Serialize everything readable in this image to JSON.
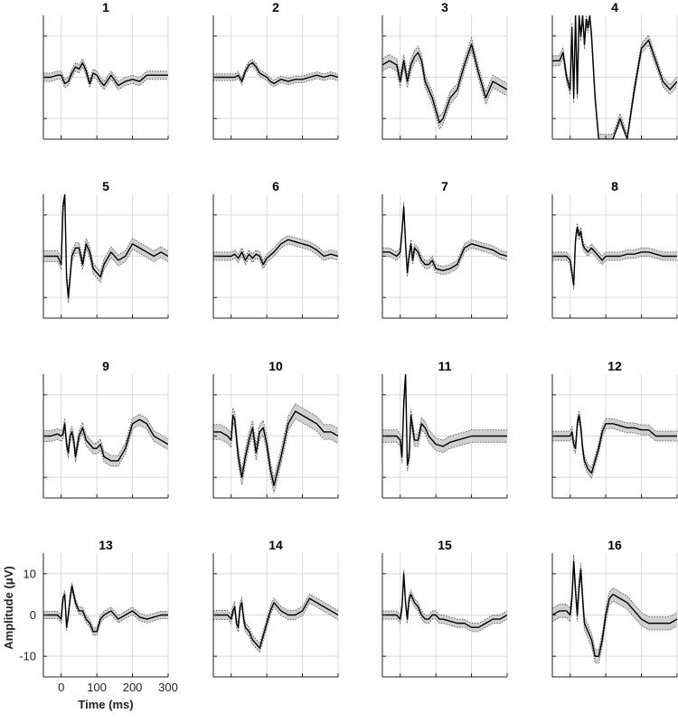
{
  "chart_data": {
    "type": "line",
    "layout_grid": "4x4",
    "x_unit": "ms",
    "xlabel": "Time (ms)",
    "ylabel": "Amplitude (μV)",
    "xlim": [
      -50,
      300
    ],
    "ylim": [
      -15,
      15
    ],
    "xticks": [
      0,
      100,
      200,
      300
    ],
    "yticks": [
      -10,
      0,
      10
    ],
    "grid": true,
    "band": "shaded standard-error band with dotted edges",
    "colors": {
      "mean": "#000000",
      "band": "#d0d0d0",
      "band_edge": "#555555",
      "grid": "#d9d9d9",
      "axis": "#222222"
    },
    "panels": [
      {
        "title": "1",
        "x": [
          -50,
          -30,
          -10,
          0,
          10,
          20,
          30,
          40,
          50,
          60,
          70,
          80,
          90,
          100,
          110,
          120,
          140,
          160,
          180,
          200,
          220,
          240,
          260,
          280,
          300
        ],
        "y": [
          0,
          0,
          0.5,
          0.5,
          -1.5,
          -1,
          1,
          2.5,
          2,
          3.5,
          1.5,
          -1.5,
          1,
          0.5,
          -1,
          -2,
          0.5,
          -2,
          -1,
          -0.5,
          -1,
          0.5,
          0.5,
          0.5,
          0.5
        ],
        "sem": 1.0
      },
      {
        "title": "2",
        "x": [
          -50,
          -30,
          -10,
          0,
          10,
          20,
          30,
          40,
          50,
          60,
          70,
          80,
          90,
          100,
          110,
          120,
          140,
          160,
          180,
          200,
          220,
          240,
          260,
          280,
          300
        ],
        "y": [
          0,
          0,
          0,
          0,
          0,
          0.5,
          -1,
          1.5,
          3,
          3.5,
          2.5,
          1,
          0.5,
          0,
          -1,
          -1.5,
          -0.5,
          -1,
          -0.5,
          -0.5,
          0,
          0.5,
          0,
          0.5,
          0
        ],
        "sem": 0.8
      },
      {
        "title": "3",
        "x": [
          -50,
          -30,
          -10,
          0,
          10,
          20,
          30,
          40,
          50,
          60,
          70,
          80,
          90,
          100,
          110,
          120,
          140,
          160,
          180,
          200,
          220,
          240,
          260,
          280,
          300
        ],
        "y": [
          3,
          4,
          3,
          -1,
          4,
          -1,
          3,
          5,
          6,
          4,
          -1,
          -3,
          -5,
          -8,
          -11,
          -10,
          -5,
          -3,
          3,
          8,
          1,
          -5,
          -1,
          -2,
          -3
        ],
        "sem": 1.5
      },
      {
        "title": "4",
        "x": [
          -50,
          -30,
          -20,
          -10,
          0,
          5,
          10,
          15,
          20,
          25,
          30,
          35,
          40,
          45,
          50,
          55,
          60,
          70,
          80,
          90,
          100,
          120,
          140,
          160,
          180,
          200,
          220,
          240,
          260,
          280,
          300
        ],
        "y": [
          4,
          4,
          6,
          0,
          -3,
          12,
          -5,
          15,
          -4,
          15,
          10,
          15,
          8,
          14,
          12,
          15,
          10,
          -5,
          -15,
          -15,
          -15,
          -15,
          -10,
          -15,
          -3,
          7,
          9,
          4,
          -1,
          -3,
          -1
        ],
        "sem": 1.2
      },
      {
        "title": "5",
        "x": [
          -50,
          -30,
          -10,
          0,
          5,
          10,
          15,
          20,
          25,
          30,
          40,
          50,
          60,
          70,
          80,
          90,
          100,
          110,
          120,
          140,
          160,
          180,
          200,
          220,
          240,
          260,
          280,
          300
        ],
        "y": [
          0,
          0,
          0,
          -2,
          12,
          15,
          -5,
          -10,
          -5,
          0,
          2,
          2,
          -2,
          3,
          1,
          -3,
          -4,
          -5,
          -2,
          1,
          -1,
          0,
          3,
          2,
          1,
          0,
          1,
          0
        ],
        "sem": 1.3
      },
      {
        "title": "6",
        "x": [
          -50,
          -30,
          -10,
          0,
          10,
          20,
          30,
          40,
          50,
          60,
          70,
          80,
          90,
          100,
          120,
          140,
          160,
          180,
          200,
          220,
          240,
          260,
          280,
          300
        ],
        "y": [
          0,
          0,
          0,
          0,
          0.5,
          -0.5,
          1,
          -1,
          0.5,
          -0.5,
          0.5,
          0,
          -2,
          -0.5,
          1,
          3,
          4,
          3.5,
          3,
          2.5,
          1.5,
          0,
          0.5,
          0
        ],
        "sem": 1.0
      },
      {
        "title": "7",
        "x": [
          -50,
          -30,
          -10,
          0,
          5,
          10,
          15,
          20,
          25,
          30,
          35,
          40,
          50,
          60,
          70,
          80,
          90,
          100,
          120,
          140,
          160,
          180,
          200,
          220,
          240,
          260,
          280,
          300
        ],
        "y": [
          1,
          1,
          0,
          1,
          6,
          12,
          3,
          -4,
          0,
          3,
          -1,
          2,
          1,
          -1,
          -2,
          -2,
          -1,
          -3,
          -3.5,
          -3,
          -2,
          2,
          3,
          2.5,
          2,
          1.5,
          0.5,
          0
        ],
        "sem": 1.0
      },
      {
        "title": "8",
        "x": [
          -50,
          -30,
          -10,
          0,
          5,
          10,
          15,
          20,
          25,
          30,
          35,
          40,
          50,
          60,
          70,
          80,
          90,
          100,
          120,
          140,
          160,
          180,
          200,
          220,
          240,
          260,
          280,
          300
        ],
        "y": [
          0,
          0,
          0,
          -1,
          -4,
          -7,
          4,
          7,
          5,
          6,
          3,
          2,
          1,
          2,
          1,
          0,
          -1,
          0,
          0,
          0,
          0.5,
          0.5,
          1,
          1,
          0.5,
          0,
          0,
          0
        ],
        "sem": 1.0
      },
      {
        "title": "9",
        "x": [
          -50,
          -30,
          -10,
          0,
          5,
          10,
          15,
          20,
          25,
          30,
          35,
          40,
          50,
          60,
          70,
          80,
          90,
          100,
          110,
          120,
          140,
          160,
          180,
          200,
          220,
          240,
          260,
          280,
          300
        ],
        "y": [
          0,
          0,
          0.5,
          0,
          0.5,
          3,
          -2,
          -4,
          0,
          1,
          -1,
          -5,
          0,
          2,
          -1,
          -2,
          -3,
          -3,
          -2,
          -5,
          -6,
          -6,
          -3,
          3,
          4,
          3,
          0,
          -1,
          -2
        ],
        "sem": 1.3
      },
      {
        "title": "10",
        "x": [
          -50,
          -30,
          -10,
          0,
          5,
          10,
          20,
          30,
          40,
          50,
          60,
          70,
          80,
          90,
          100,
          110,
          120,
          140,
          160,
          180,
          200,
          220,
          240,
          260,
          280,
          300
        ],
        "y": [
          1,
          1,
          0,
          -1,
          5,
          4,
          -5,
          -10,
          -5,
          -1,
          2,
          -4,
          1,
          2,
          -2,
          -8,
          -12,
          -5,
          3,
          6,
          5,
          4,
          3,
          1,
          1,
          0
        ],
        "sem": 1.8
      },
      {
        "title": "11",
        "x": [
          -50,
          -30,
          -10,
          0,
          5,
          10,
          15,
          20,
          25,
          30,
          35,
          40,
          50,
          60,
          70,
          80,
          90,
          100,
          120,
          140,
          160,
          180,
          200,
          220,
          240,
          260,
          280,
          300
        ],
        "y": [
          0,
          0,
          0,
          -1,
          -5,
          8,
          15,
          -7,
          -5,
          5,
          2,
          -1,
          -1,
          3,
          2,
          0,
          -1,
          -2,
          -2.5,
          -1.5,
          -1,
          -0.5,
          0,
          0,
          0,
          0,
          0,
          0
        ],
        "sem": 1.5
      },
      {
        "title": "12",
        "x": [
          -50,
          -30,
          -10,
          0,
          5,
          10,
          15,
          20,
          25,
          30,
          35,
          40,
          50,
          60,
          70,
          80,
          90,
          100,
          120,
          140,
          160,
          180,
          200,
          220,
          240,
          260,
          280,
          300
        ],
        "y": [
          0,
          0,
          0,
          0,
          1,
          -2,
          -3,
          3,
          5,
          2,
          -3,
          -6,
          -8,
          -9,
          -6,
          -3,
          1,
          3,
          3,
          2.5,
          2,
          2,
          1.5,
          1.5,
          0,
          0,
          0,
          0
        ],
        "sem": 1.2
      },
      {
        "title": "13",
        "x": [
          -50,
          -30,
          -10,
          0,
          5,
          10,
          15,
          20,
          25,
          30,
          35,
          40,
          50,
          60,
          70,
          80,
          90,
          100,
          110,
          120,
          140,
          160,
          180,
          200,
          220,
          240,
          260,
          280,
          300
        ],
        "y": [
          0,
          0,
          0,
          -1,
          4,
          5,
          -3,
          0,
          4,
          7,
          5,
          3,
          1,
          1,
          -1,
          -2,
          -4,
          -4,
          -1,
          0,
          1,
          -1,
          0,
          1,
          -0.5,
          -1,
          -0.5,
          0,
          0
        ],
        "sem": 0.9
      },
      {
        "title": "14",
        "x": [
          -50,
          -30,
          -10,
          0,
          5,
          10,
          15,
          20,
          25,
          30,
          35,
          40,
          50,
          60,
          70,
          80,
          90,
          100,
          110,
          120,
          140,
          160,
          180,
          200,
          220,
          240,
          260,
          280,
          300
        ],
        "y": [
          0,
          0,
          0,
          -1,
          1,
          2,
          -2,
          -3,
          2,
          3,
          -1,
          -3,
          -4,
          -6,
          -7,
          -8,
          -5,
          -2,
          1,
          3,
          1,
          0,
          0,
          1,
          4,
          3,
          2,
          1,
          0
        ],
        "sem": 1.1
      },
      {
        "title": "15",
        "x": [
          -50,
          -30,
          -10,
          0,
          5,
          10,
          15,
          20,
          25,
          30,
          35,
          40,
          50,
          60,
          70,
          80,
          90,
          100,
          110,
          120,
          140,
          160,
          180,
          200,
          220,
          240,
          260,
          280,
          300
        ],
        "y": [
          0,
          0,
          0,
          -1,
          2,
          10,
          3,
          -1,
          4,
          5,
          4,
          3,
          2,
          0,
          -1,
          -1,
          0,
          0,
          -1,
          -1,
          -1.5,
          -2,
          -2,
          -3,
          -3,
          -2,
          -1,
          -1,
          0
        ],
        "sem": 1.0
      },
      {
        "title": "16",
        "x": [
          -50,
          -30,
          -10,
          0,
          5,
          10,
          15,
          20,
          25,
          30,
          35,
          40,
          50,
          60,
          70,
          80,
          90,
          100,
          110,
          120,
          140,
          160,
          180,
          200,
          220,
          240,
          260,
          280,
          300
        ],
        "y": [
          0,
          1,
          1,
          0,
          4,
          13,
          6,
          0,
          7,
          11,
          4,
          -2,
          -4,
          -6,
          -10,
          -10,
          -6,
          0,
          4,
          5,
          4,
          3,
          1,
          -1,
          -2,
          -2,
          -2,
          -2,
          -1
        ],
        "sem": 1.6
      }
    ]
  }
}
